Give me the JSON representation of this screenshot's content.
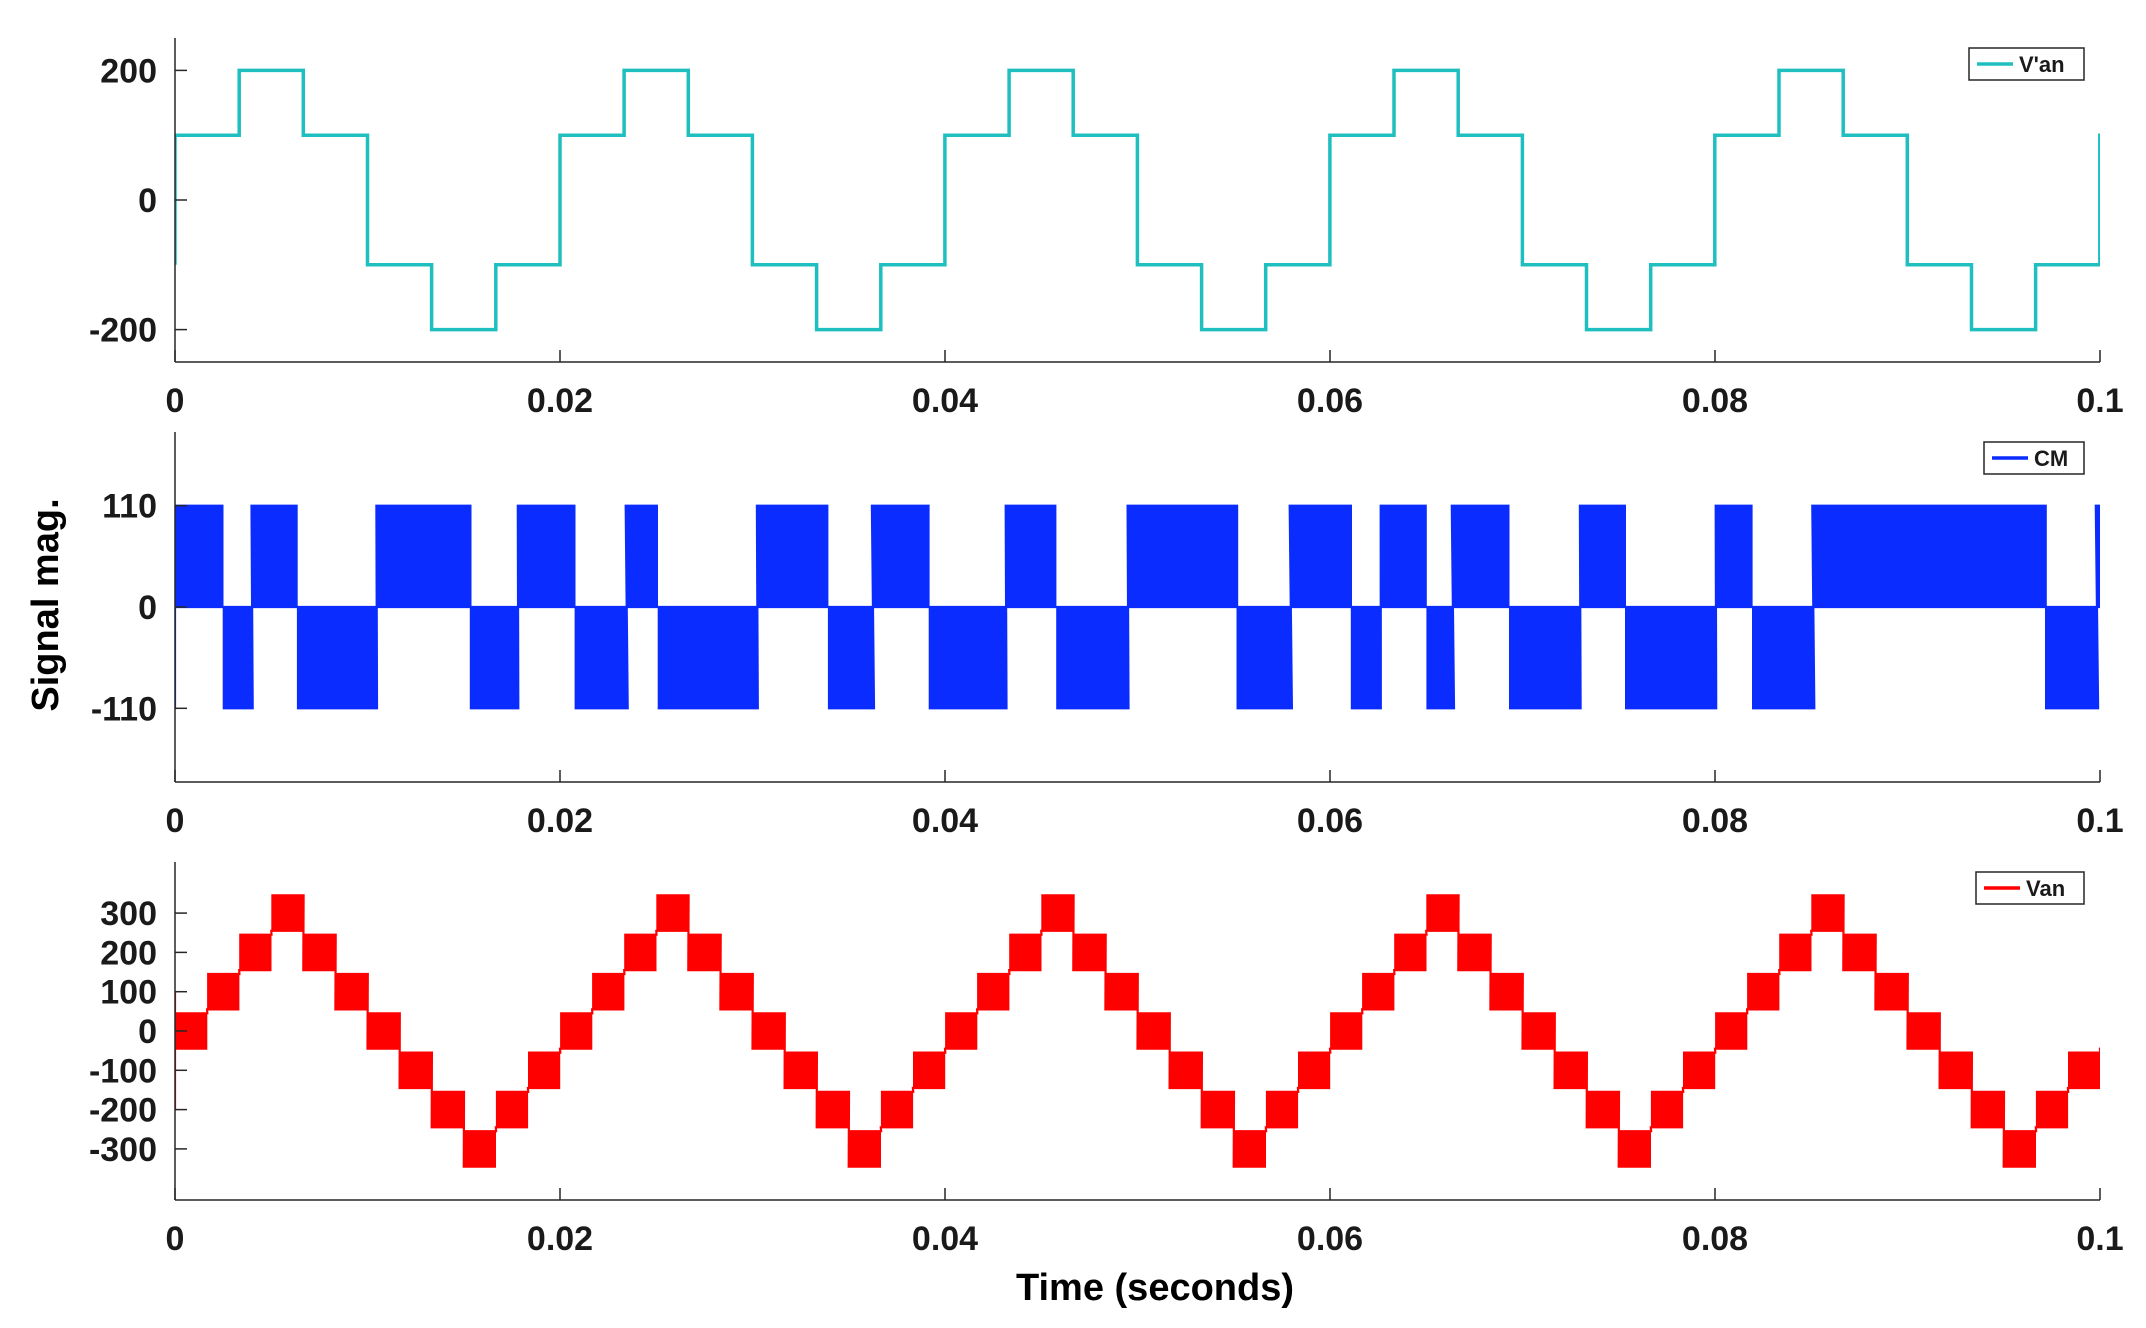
{
  "figure": {
    "ylabel": "Signal mag.",
    "xlabel": "Time (seconds)"
  },
  "chart_data": [
    {
      "type": "line",
      "title": "",
      "xlabel": "",
      "ylabel": "",
      "xlim": [
        0,
        0.1
      ],
      "ylim": [
        -250,
        250
      ],
      "x_ticks": [
        0,
        0.02,
        0.04,
        0.06,
        0.08,
        0.1
      ],
      "x_tick_labels": [
        "0",
        "0.02",
        "0.04",
        "0.06",
        "0.08",
        "0.1"
      ],
      "y_ticks": [
        -200,
        0,
        200
      ],
      "y_tick_labels": [
        "-200",
        "0",
        "200"
      ],
      "legend_position": "top-right",
      "grid": false,
      "series": [
        {
          "name": "V'an",
          "color": "#1fbfbf",
          "waveform": "staircase",
          "period": 0.02,
          "step_width": 0.003333,
          "levels": [
            100,
            200,
            100,
            -100,
            -200,
            -100
          ]
        }
      ]
    },
    {
      "type": "line",
      "title": "",
      "xlabel": "",
      "ylabel": "",
      "xlim": [
        0,
        0.1
      ],
      "ylim": [
        -190,
        190
      ],
      "x_ticks": [
        0,
        0.02,
        0.04,
        0.06,
        0.08,
        0.1
      ],
      "x_tick_labels": [
        "0",
        "0.02",
        "0.04",
        "0.06",
        "0.08",
        "0.1"
      ],
      "y_ticks": [
        -110,
        0,
        110
      ],
      "y_tick_labels": [
        "-110",
        "0",
        "110"
      ],
      "legend_position": "top-right",
      "grid": false,
      "series": [
        {
          "name": "CM",
          "color": "#0a2cff",
          "waveform": "pwm_common_mode",
          "levels": [
            -110,
            0,
            110
          ]
        }
      ]
    },
    {
      "type": "line",
      "title": "",
      "xlabel": "Time (seconds)",
      "ylabel": "",
      "xlim": [
        0,
        0.1
      ],
      "ylim": [
        -430,
        430
      ],
      "x_ticks": [
        0,
        0.02,
        0.04,
        0.06,
        0.08,
        0.1
      ],
      "x_tick_labels": [
        "0",
        "0.02",
        "0.04",
        "0.06",
        "0.08",
        "0.1"
      ],
      "y_ticks": [
        -300,
        -200,
        -100,
        0,
        100,
        200,
        300
      ],
      "y_tick_labels": [
        "-300",
        "-200",
        "-100",
        "0",
        "100",
        "200",
        "300"
      ],
      "legend_position": "top-right",
      "grid": false,
      "series": [
        {
          "name": "Van",
          "color": "#ff0000",
          "waveform": "multilevel_staircase_pwm",
          "period": 0.02,
          "amplitude_levels": [
            0,
            100,
            200,
            300,
            200,
            100,
            0,
            -100,
            -200,
            -300,
            -200,
            -100
          ]
        }
      ]
    }
  ]
}
